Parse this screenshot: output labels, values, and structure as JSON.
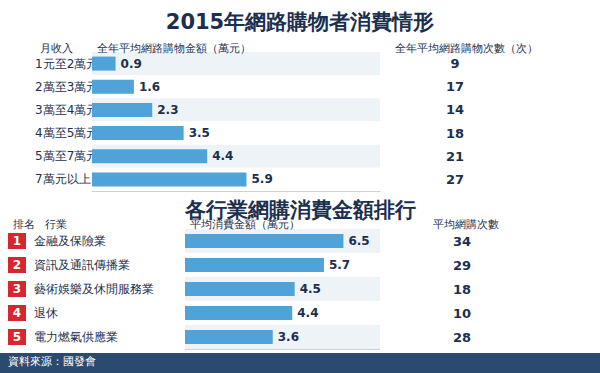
{
  "chart_data": [
    {
      "type": "bar",
      "orientation": "horizontal",
      "title": "2015年網路購物者消費情形",
      "category_label": "月收入",
      "categories": [
        "1元至2萬元",
        "2萬至3萬元",
        "3萬至4萬元",
        "4萬至5萬元",
        "5萬至7萬元",
        "7萬元以上"
      ],
      "series": [
        {
          "name": "全年平均網路購物金額（萬元）",
          "color": "#4fa3d9",
          "values": [
            0.9,
            1.6,
            2.3,
            3.5,
            4.4,
            5.9
          ]
        }
      ],
      "counts_label": "全年平均網路購物次數（次）",
      "counts": [
        9,
        17,
        14,
        18,
        21,
        27
      ],
      "xlim": [
        0,
        11
      ],
      "data_labels": true,
      "tick_labels": "y",
      "grid": false
    },
    {
      "type": "bar",
      "orientation": "horizontal",
      "title": "各行業網購消費金額排行",
      "rank_label": "排名",
      "category_label": "行業",
      "ranks": [
        1,
        2,
        3,
        4,
        5
      ],
      "categories": [
        "金融及保險業",
        "資訊及通訊傳播業",
        "藝術娛樂及休閒服務業",
        "退休",
        "電力燃氣供應業"
      ],
      "series": [
        {
          "name": "平均消費金額（萬元）",
          "color": "#4fa3d9",
          "values": [
            6.5,
            5.7,
            4.5,
            4.4,
            3.6
          ]
        }
      ],
      "counts_label": "平均網購次數",
      "counts": [
        34,
        29,
        18,
        10,
        28
      ],
      "xlim": [
        0,
        8
      ],
      "data_labels": true,
      "tick_labels": "y",
      "grid": false
    }
  ],
  "source": "資料來源：國發會"
}
